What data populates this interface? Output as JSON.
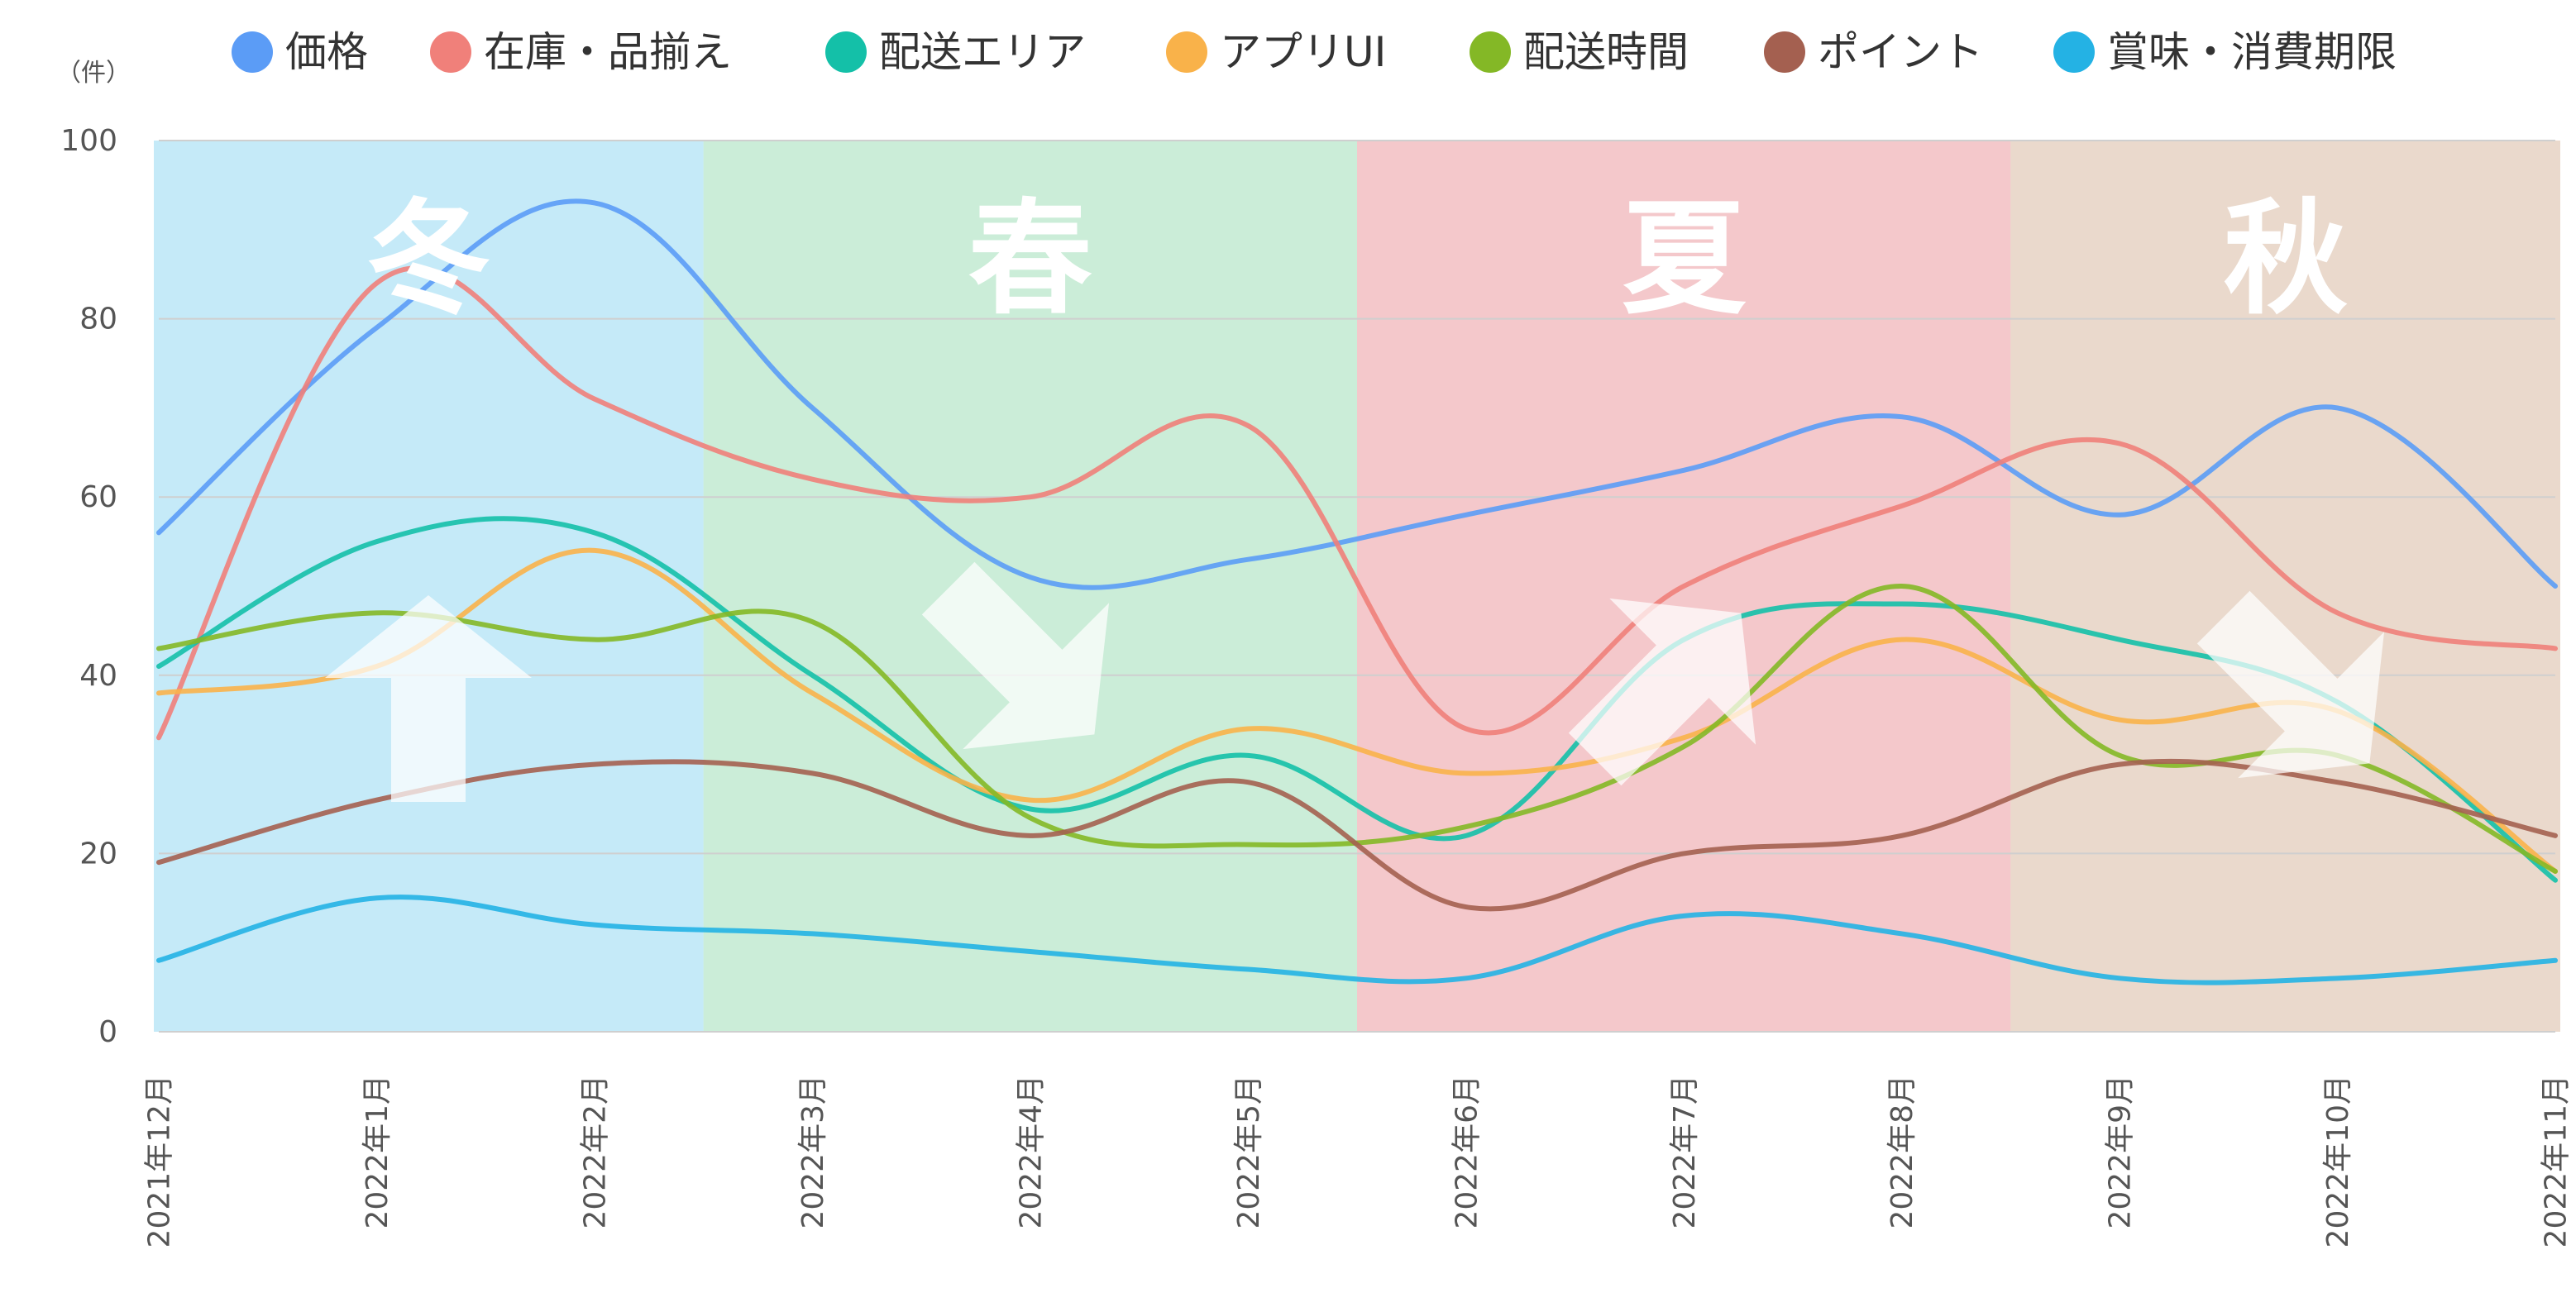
{
  "chart_data": {
    "type": "line",
    "title": "",
    "xlabel": "",
    "ylabel": "",
    "y_unit": "（件）",
    "ylim": [
      0,
      100
    ],
    "y_ticks": [
      0,
      20,
      40,
      60,
      80,
      100
    ],
    "grid": true,
    "legend_position": "top",
    "categories": [
      "2021年12月",
      "2022年1月",
      "2022年2月",
      "2022年3月",
      "2022年4月",
      "2022年5月",
      "2022年6月",
      "2022年7月",
      "2022年8月",
      "2022年9月",
      "2022年10月",
      "2022年11月"
    ],
    "series": [
      {
        "name": "価格",
        "color": "#5b9cf6",
        "values": [
          56,
          79,
          93,
          70,
          51,
          53,
          58,
          63,
          69,
          58,
          70,
          50
        ]
      },
      {
        "name": "在庫・品揃え",
        "color": "#f0807a",
        "values": [
          33,
          84,
          71,
          62,
          60,
          68,
          34,
          50,
          59,
          66,
          47,
          43
        ]
      },
      {
        "name": "配送エリア",
        "color": "#14c0a8",
        "values": [
          41,
          55,
          56,
          40,
          25,
          31,
          22,
          44,
          48,
          44,
          37,
          17
        ]
      },
      {
        "name": "アプリUI",
        "color": "#f9b24a",
        "values": [
          38,
          41,
          54,
          38,
          26,
          34,
          29,
          33,
          44,
          35,
          36,
          18
        ]
      },
      {
        "name": "配送時間",
        "color": "#84b826",
        "values": [
          43,
          47,
          44,
          46,
          24,
          21,
          23,
          32,
          50,
          31,
          31,
          18
        ]
      },
      {
        "name": "ポイント",
        "color": "#a46050",
        "values": [
          19,
          26,
          30,
          29,
          22,
          28,
          14,
          20,
          22,
          30,
          28,
          22
        ]
      },
      {
        "name": "賞味・消費期限",
        "color": "#24b2e4",
        "values": [
          8,
          15,
          12,
          11,
          9,
          7,
          6,
          13,
          11,
          6,
          6,
          8
        ]
      }
    ],
    "season_bands": [
      {
        "label": "冬",
        "start": -0.05,
        "end": 2.5,
        "color": "#9edcf3"
      },
      {
        "label": "春",
        "start": 2.5,
        "end": 5.5,
        "color": "#a9e1be"
      },
      {
        "label": "夏",
        "start": 5.5,
        "end": 8.5,
        "color": "#eda4a8"
      },
      {
        "label": "秋",
        "start": 8.5,
        "end": 11.05,
        "color": "#dcc0aa"
      }
    ],
    "trend_arrows": [
      {
        "season": "冬",
        "direction": "up",
        "angle": -90
      },
      {
        "season": "春",
        "direction": "down-right",
        "angle": 45
      },
      {
        "season": "夏",
        "direction": "up-right",
        "angle": -45
      },
      {
        "season": "秋",
        "direction": "down-right",
        "angle": 45
      }
    ]
  }
}
